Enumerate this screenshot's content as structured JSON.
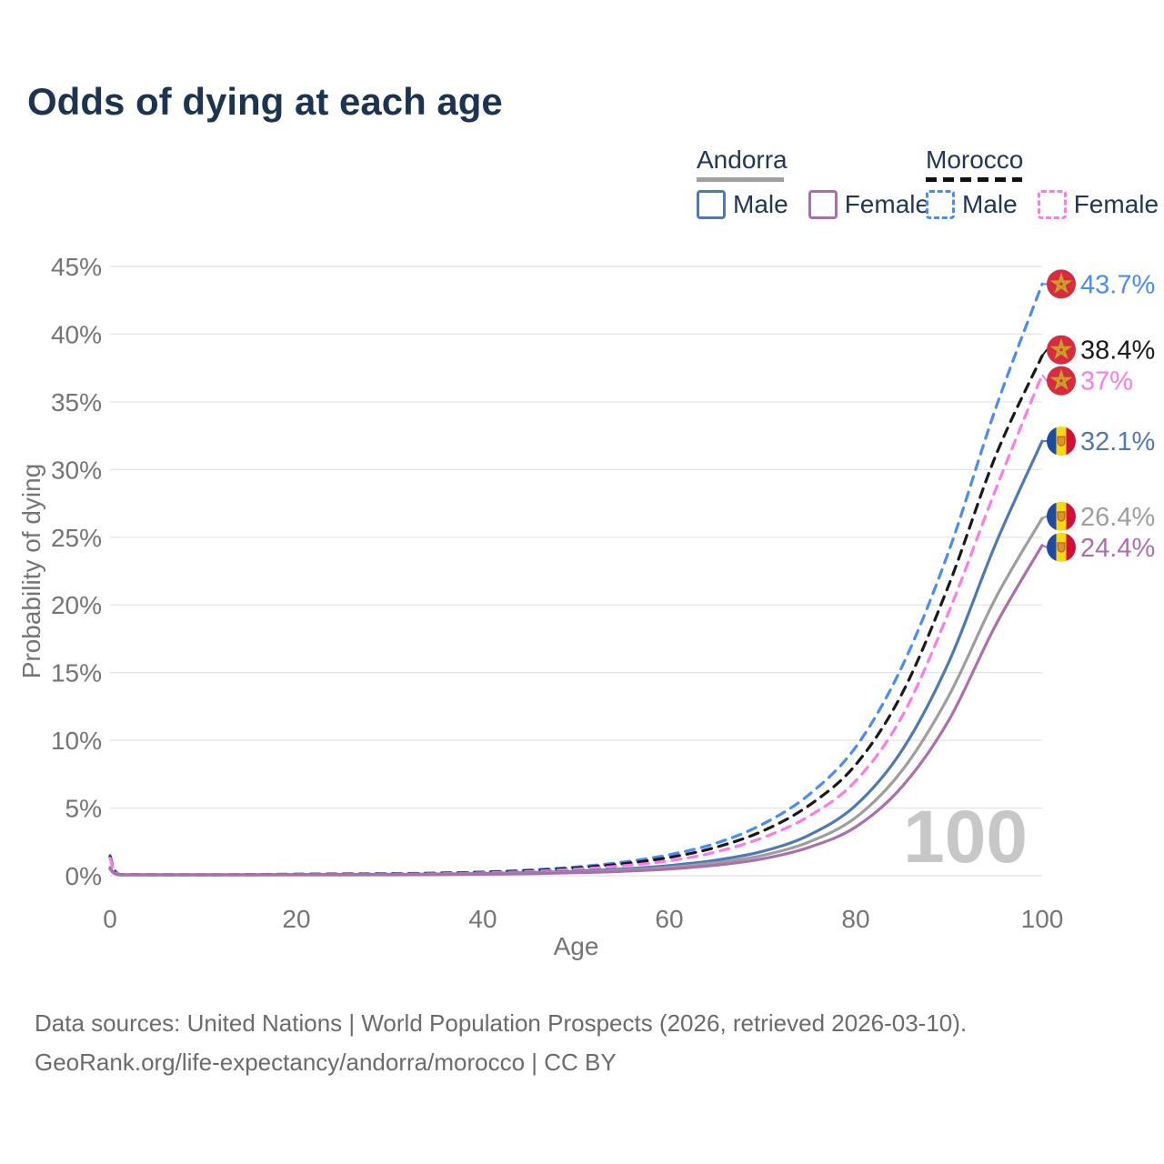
{
  "title": "Odds of dying at each age",
  "legend": {
    "groups": [
      {
        "country": "Andorra",
        "line_style": "solid",
        "underline_color": "#a0a0a0",
        "items": [
          {
            "label": "Male",
            "color": "#4e79b5",
            "dashed": false
          },
          {
            "label": "Female",
            "color": "#ab6fad",
            "dashed": false
          }
        ]
      },
      {
        "country": "Morocco",
        "line_style": "dashed",
        "underline_color": "#111111",
        "items": [
          {
            "label": "Male",
            "color": "#4b8bf5",
            "dashed": true
          },
          {
            "label": "Female",
            "color": "#fb7ce8",
            "dashed": true
          }
        ]
      }
    ]
  },
  "chart_data": {
    "type": "line",
    "title": "Odds of dying at each age",
    "xlabel": "Age",
    "ylabel": "Probability of dying",
    "xlim": [
      0,
      100
    ],
    "ylim": [
      0,
      45
    ],
    "x_ticks": [
      0,
      20,
      40,
      60,
      80,
      100
    ],
    "y_ticks": [
      0,
      5,
      10,
      15,
      20,
      25,
      30,
      35,
      40,
      45
    ],
    "y_tick_suffix": "%",
    "grid": "horizontal",
    "legend_position": "top-right",
    "watermark": "100",
    "x": [
      0,
      1,
      5,
      10,
      15,
      20,
      25,
      30,
      35,
      40,
      45,
      50,
      55,
      60,
      65,
      70,
      75,
      80,
      85,
      90,
      95,
      100
    ],
    "series": [
      {
        "name": "Morocco Male",
        "country": "Morocco",
        "sex": "Male",
        "style": "dashed",
        "color": "#4b8bf5",
        "flag": "morocco",
        "end_label": "43.7%",
        "end_value": 43.7,
        "values": [
          1.5,
          0.1,
          0.08,
          0.06,
          0.09,
          0.12,
          0.14,
          0.16,
          0.2,
          0.28,
          0.42,
          0.65,
          1.0,
          1.55,
          2.4,
          3.8,
          6.0,
          9.5,
          15.5,
          24.0,
          34.5,
          43.7
        ]
      },
      {
        "name": "Morocco",
        "country": "Morocco",
        "sex": "Both",
        "style": "dashed",
        "color": "#1a1a1a",
        "flag": "morocco",
        "end_label": "38.4%",
        "end_value": 38.4,
        "values": [
          1.4,
          0.09,
          0.07,
          0.05,
          0.08,
          0.1,
          0.12,
          0.14,
          0.18,
          0.25,
          0.37,
          0.57,
          0.88,
          1.35,
          2.1,
          3.3,
          5.2,
          8.2,
          13.5,
          21.5,
          31.0,
          38.4
        ]
      },
      {
        "name": "Morocco Female",
        "country": "Morocco",
        "sex": "Female",
        "style": "dashed",
        "color": "#fb7ce8",
        "flag": "morocco",
        "end_label": "37%",
        "end_value": 37.0,
        "values": [
          1.3,
          0.08,
          0.06,
          0.05,
          0.07,
          0.08,
          0.1,
          0.12,
          0.15,
          0.21,
          0.31,
          0.48,
          0.73,
          1.1,
          1.75,
          2.8,
          4.4,
          7.0,
          11.8,
          19.5,
          28.5,
          37.0
        ]
      },
      {
        "name": "Andorra Male",
        "country": "Andorra",
        "sex": "Male",
        "style": "solid",
        "color": "#4e79b5",
        "flag": "andorra",
        "end_label": "32.1%",
        "end_value": 32.1,
        "values": [
          0.6,
          0.05,
          0.04,
          0.03,
          0.05,
          0.08,
          0.09,
          0.1,
          0.12,
          0.16,
          0.23,
          0.33,
          0.5,
          0.75,
          1.15,
          1.8,
          3.0,
          5.2,
          9.3,
          15.8,
          24.5,
          32.1
        ]
      },
      {
        "name": "Andorra",
        "country": "Andorra",
        "sex": "Both",
        "style": "solid",
        "color": "#9e9e9e",
        "flag": "andorra",
        "end_label": "26.4%",
        "end_value": 26.4,
        "values": [
          0.55,
          0.04,
          0.03,
          0.03,
          0.04,
          0.06,
          0.07,
          0.08,
          0.1,
          0.13,
          0.19,
          0.27,
          0.41,
          0.62,
          0.95,
          1.5,
          2.5,
          4.3,
          7.8,
          13.3,
          20.5,
          26.4
        ]
      },
      {
        "name": "Andorra Female",
        "country": "Andorra",
        "sex": "Female",
        "style": "solid",
        "color": "#ab6fad",
        "flag": "andorra",
        "end_label": "24.4%",
        "end_value": 24.4,
        "values": [
          0.5,
          0.04,
          0.03,
          0.02,
          0.03,
          0.05,
          0.06,
          0.07,
          0.08,
          0.11,
          0.15,
          0.22,
          0.33,
          0.5,
          0.78,
          1.25,
          2.1,
          3.6,
          6.6,
          11.5,
          18.5,
          24.4
        ]
      }
    ],
    "flag_colors": {
      "morocco": {
        "circle": "#d92b3f",
        "star": "#c9a227"
      },
      "andorra": {
        "blue": "#1f4b9e",
        "yellow": "#f9d616",
        "red": "#d0103a",
        "crest": "#e0912c",
        "crest_border": "#a85a12"
      }
    }
  },
  "footer": {
    "line1": "Data sources: United Nations | World Population Prospects (2026, retrieved 2026-03-10).",
    "line2": "GeoRank.org/life-expectancy/andorra/morocco | CC BY"
  }
}
